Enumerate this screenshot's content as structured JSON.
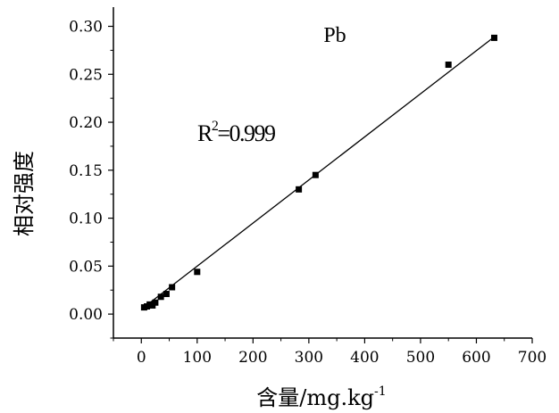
{
  "chart_data": {
    "type": "scatter",
    "title": "",
    "xlabel": "含量/mg.kg",
    "xlabel_superscript": "-1",
    "ylabel": "相对强度",
    "xlim": [
      -50,
      700
    ],
    "ylim": [
      -0.025,
      0.32
    ],
    "xticks": [
      0,
      100,
      200,
      300,
      400,
      500,
      600,
      700
    ],
    "yticks": [
      0.0,
      0.05,
      0.1,
      0.15,
      0.2,
      0.25,
      0.3
    ],
    "xtick_labels": [
      "0",
      "100",
      "200",
      "300",
      "400",
      "500",
      "600",
      "700"
    ],
    "ytick_labels": [
      "0.00",
      "0.05",
      "0.10",
      "0.15",
      "0.20",
      "0.25",
      "0.30"
    ],
    "grid": false,
    "annotations": {
      "element": "Pb",
      "r2_base": "R",
      "r2_exp": "2",
      "r2_value": "=0.999"
    },
    "series": [
      {
        "points": [
          {
            "x": 5,
            "y": 0.007
          },
          {
            "x": 10,
            "y": 0.008
          },
          {
            "x": 15,
            "y": 0.01
          },
          {
            "x": 20,
            "y": 0.009
          },
          {
            "x": 25,
            "y": 0.012
          },
          {
            "x": 35,
            "y": 0.018
          },
          {
            "x": 45,
            "y": 0.021
          },
          {
            "x": 55,
            "y": 0.028
          },
          {
            "x": 100,
            "y": 0.044
          },
          {
            "x": 282,
            "y": 0.13
          },
          {
            "x": 312,
            "y": 0.145
          },
          {
            "x": 550,
            "y": 0.26
          },
          {
            "x": 632,
            "y": 0.288
          }
        ],
        "color": "#000000"
      }
    ],
    "fit_line": {
      "x": [
        0,
        632
      ],
      "y": [
        0.005,
        0.289
      ],
      "color": "#000000"
    }
  }
}
